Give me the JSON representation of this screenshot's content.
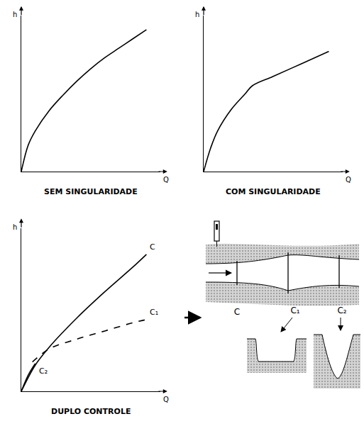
{
  "chart_data": [
    {
      "type": "line",
      "title": "SEM SINGULARIDADE",
      "x_label": "Q",
      "y_label": "h",
      "xlim": [
        0,
        10
      ],
      "ylim": [
        0,
        10
      ],
      "tick_labels": false,
      "grid": false,
      "color": "#000000",
      "x": [
        0,
        0.5,
        1,
        2,
        3,
        4,
        5,
        6,
        7,
        8,
        9
      ],
      "values": [
        0,
        1.7,
        2.6,
        3.9,
        4.9,
        5.8,
        6.6,
        7.3,
        7.9,
        8.5,
        9.1
      ]
    },
    {
      "type": "line",
      "title": "COM SINGULARIDADE",
      "x_label": "Q",
      "y_label": "h",
      "xlim": [
        0,
        10
      ],
      "ylim": [
        0,
        10
      ],
      "tick_labels": false,
      "grid": false,
      "color": "#000000",
      "x": [
        0,
        0.5,
        1,
        2,
        3,
        3.5,
        5,
        7,
        9
      ],
      "values": [
        0,
        1.5,
        2.6,
        4,
        5,
        5.5,
        6.1,
        6.9,
        7.7
      ]
    },
    {
      "type": "line",
      "title": "DUPLO CONTROLE",
      "x_label": "Q",
      "y_label": "h",
      "xlim": [
        0,
        10
      ],
      "ylim": [
        0,
        10
      ],
      "tick_labels": false,
      "grid": false,
      "series": [
        {
          "name": "C",
          "color": "#000000",
          "line_style": "solid",
          "x": [
            0,
            1,
            2,
            4,
            6,
            8,
            9
          ],
          "values": [
            0,
            1.6,
            2.7,
            4.5,
            6.1,
            7.6,
            8.4
          ]
        },
        {
          "name": "C₁",
          "color": "#000000",
          "line_style": "dashed",
          "x": [
            0.8,
            2,
            4,
            6,
            8,
            9
          ],
          "values": [
            1.8,
            2.6,
            3.2,
            3.7,
            4.2,
            4.4
          ]
        },
        {
          "name": "C₂",
          "color": "#000000",
          "line_style": "solid",
          "x": [
            0,
            0.5,
            1
          ],
          "values": [
            0,
            1.0,
            1.7
          ]
        }
      ]
    }
  ],
  "diagram": {
    "section_labels": [
      "C",
      "C₁",
      "C₂"
    ]
  }
}
